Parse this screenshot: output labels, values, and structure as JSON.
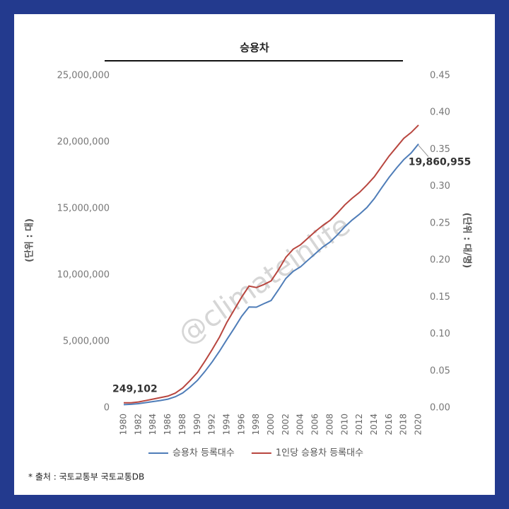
{
  "chart_data": {
    "type": "line",
    "title": "승용차",
    "y_label": "(단위 : 대)",
    "y2_label": "(단위 : 대/명)",
    "source": "* 출처 : 국토교통부 국토교통DB",
    "watermark": "@climateinlife",
    "x": [
      1980,
      1981,
      1982,
      1983,
      1984,
      1985,
      1986,
      1987,
      1988,
      1989,
      1990,
      1991,
      1992,
      1993,
      1994,
      1995,
      1996,
      1997,
      1998,
      1999,
      2000,
      2001,
      2002,
      2003,
      2004,
      2005,
      2006,
      2007,
      2008,
      2009,
      2010,
      2011,
      2012,
      2013,
      2014,
      2015,
      2016,
      2017,
      2018,
      2019,
      2020
    ],
    "xlim": [
      1980,
      2020
    ],
    "xticks": [
      1980,
      1982,
      1984,
      1986,
      1988,
      1990,
      1992,
      1994,
      1996,
      1998,
      2000,
      2002,
      2004,
      2006,
      2008,
      2010,
      2012,
      2014,
      2016,
      2018,
      2020
    ],
    "ylim": [
      0,
      25000000
    ],
    "yticks": [
      {
        "value": 0,
        "label": "0"
      },
      {
        "value": 5000000,
        "label": "5,000,000"
      },
      {
        "value": 10000000,
        "label": "10,000,000"
      },
      {
        "value": 15000000,
        "label": "15,000,000"
      },
      {
        "value": 20000000,
        "label": "20,000,000"
      },
      {
        "value": 25000000,
        "label": "25,000,000"
      }
    ],
    "y2lim": [
      0,
      0.45
    ],
    "y2ticks": [
      {
        "value": 0,
        "label": "0.00"
      },
      {
        "value": 0.05,
        "label": "0.05"
      },
      {
        "value": 0.1,
        "label": "0.10"
      },
      {
        "value": 0.15,
        "label": "0.15"
      },
      {
        "value": 0.2,
        "label": "0.20"
      },
      {
        "value": 0.25,
        "label": "0.25"
      },
      {
        "value": 0.3,
        "label": "0.30"
      },
      {
        "value": 0.35,
        "label": "0.35"
      },
      {
        "value": 0.4,
        "label": "0.40"
      },
      {
        "value": 0.45,
        "label": "0.45"
      }
    ],
    "grid": false,
    "legend": "bottom",
    "series": [
      {
        "name": "승용차 등록대수",
        "color": "#4f7db8",
        "values": [
          249102,
          270000,
          320000,
          400000,
          480000,
          560000,
          660000,
          840000,
          1120000,
          1560000,
          2070000,
          2730000,
          3460000,
          4270000,
          5150000,
          6000000,
          6890000,
          7590000,
          7580000,
          7840000,
          8080000,
          8890000,
          9740000,
          10280000,
          10620000,
          11120000,
          11610000,
          12100000,
          12480000,
          13020000,
          13630000,
          14140000,
          14580000,
          15080000,
          15750000,
          16560000,
          17340000,
          18040000,
          18680000,
          19180000,
          19860955
        ],
        "value_labels": [
          "249,102",
          null,
          null,
          null,
          null,
          null,
          null,
          null,
          null,
          null,
          null,
          null,
          null,
          null,
          null,
          null,
          null,
          null,
          null,
          null,
          null,
          null,
          null,
          null,
          null,
          null,
          null,
          null,
          null,
          null,
          null,
          null,
          null,
          null,
          null,
          null,
          null,
          null,
          null,
          null,
          "19,860,955"
        ]
      },
      {
        "name": "1인당 승용차 등록대수",
        "color": "#b8463f",
        "axis": "y2",
        "values": [
          0.007,
          0.007,
          0.008,
          0.01,
          0.012,
          0.014,
          0.016,
          0.02,
          0.027,
          0.037,
          0.048,
          0.063,
          0.079,
          0.096,
          0.116,
          0.133,
          0.15,
          0.165,
          0.163,
          0.167,
          0.172,
          0.187,
          0.204,
          0.215,
          0.221,
          0.23,
          0.239,
          0.247,
          0.254,
          0.264,
          0.275,
          0.284,
          0.292,
          0.302,
          0.313,
          0.327,
          0.341,
          0.353,
          0.365,
          0.373,
          0.383
        ]
      }
    ]
  }
}
